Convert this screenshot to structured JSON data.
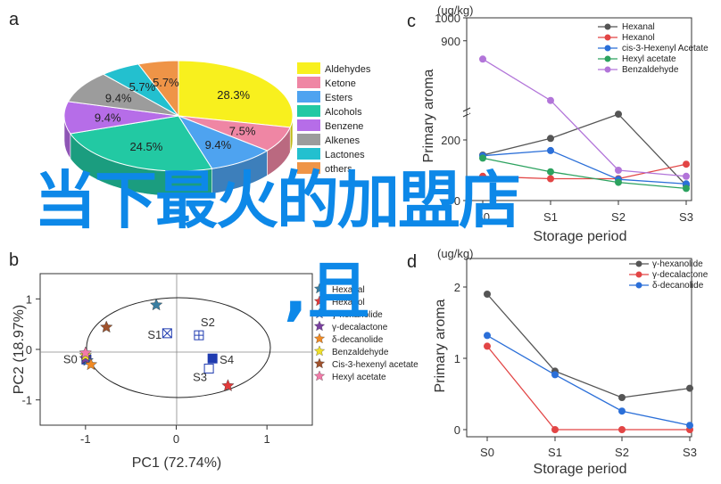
{
  "panels": {
    "a": "a",
    "b": "b",
    "c": "c",
    "d": "d"
  },
  "overlay_text": {
    "line1": "当下最火的加盟店",
    "line2": ",且"
  },
  "chart_data": [
    {
      "type": "pie",
      "panel": "a",
      "labels": [
        "Aldehydes",
        "Ketone",
        "Esters",
        "Alcohols",
        "Benzene",
        "Alkenes",
        "Lactones",
        "others"
      ],
      "values": [
        28.3,
        7.5,
        9.4,
        24.5,
        9.4,
        9.4,
        5.7,
        5.7
      ],
      "value_labels": [
        "28.3%",
        "7.5%",
        "9.4%",
        "24.5%",
        "9.4%",
        "9.4%",
        "5.7%",
        "5.7%"
      ],
      "colors": [
        "#f8f01e",
        "#ef86a4",
        "#4ea3f0",
        "#22c9a3",
        "#b66de8",
        "#9c9c9c",
        "#23c0cf",
        "#ef9447"
      ],
      "legend_position": "right"
    },
    {
      "type": "scatter",
      "panel": "b",
      "xlabel": "PC1 (72.74%)",
      "ylabel": "PC2 (18.97%)",
      "xlim": [
        -1.5,
        1.5
      ],
      "ylim": [
        -1.5,
        1.5
      ],
      "xticks": [
        -1,
        0,
        1
      ],
      "yticks": [
        -1,
        0,
        1
      ],
      "x_tick_labels": [
        "-1",
        "0",
        "1"
      ],
      "y_tick_labels": [
        "-1",
        "0",
        "1"
      ],
      "samples": [
        {
          "name": "S0",
          "x": -0.99,
          "y": -0.2
        },
        {
          "name": "S1",
          "x": -0.1,
          "y": 0.32
        },
        {
          "name": "S2",
          "x": 0.25,
          "y": 0.28
        },
        {
          "name": "S3",
          "x": 0.36,
          "y": -0.38
        },
        {
          "name": "S4",
          "x": 0.4,
          "y": -0.18
        }
      ],
      "variables": [
        {
          "name": "Hexanal",
          "x": -0.22,
          "y": 0.88,
          "color": "#3a7ea1"
        },
        {
          "name": "Hexanol",
          "x": 0.57,
          "y": -0.72,
          "color": "#e23a3a"
        },
        {
          "name": "γ-hexanolide",
          "x": -0.98,
          "y": -0.22,
          "color": "#2b6fd8"
        },
        {
          "name": "γ-decalactone",
          "x": -1.0,
          "y": -0.18,
          "color": "#7a3fa0"
        },
        {
          "name": "δ-decanolide",
          "x": -0.94,
          "y": -0.3,
          "color": "#f08a24"
        },
        {
          "name": "Benzaldehyde",
          "x": -1.0,
          "y": -0.12,
          "color": "#f0e02a"
        },
        {
          "name": "Cis-3-hexenyl acetate",
          "x": -0.77,
          "y": 0.44,
          "color": "#a0522d"
        },
        {
          "name": "Hexyl acetate",
          "x": -1.0,
          "y": -0.07,
          "color": "#f27aa8"
        }
      ],
      "legend_position": "right"
    },
    {
      "type": "line",
      "panel": "c",
      "units_label": "(ug/kg)",
      "xlabel": "Storage period",
      "ylabel": "Primary aroma",
      "categories": [
        "S0",
        "S1",
        "S2",
        "S3"
      ],
      "y_tick_labels": [
        "0",
        "200",
        "900",
        "1000"
      ],
      "axis_break": true,
      "series": [
        {
          "name": "Hexanal",
          "color": "#555555",
          "values": [
            150,
            205,
            285,
            50
          ]
        },
        {
          "name": "Hexanol",
          "color": "#e24545",
          "values": [
            80,
            72,
            72,
            120
          ]
        },
        {
          "name": "cis-3-Hexenyl Acetate",
          "color": "#2b6fd8",
          "values": [
            148,
            165,
            70,
            55
          ]
        },
        {
          "name": "Hexyl acetate",
          "color": "#2ca25f",
          "values": [
            140,
            95,
            60,
            40
          ]
        },
        {
          "name": "Benzaldehyde",
          "color": "#b275d9",
          "values": [
            820,
            640,
            100,
            80
          ]
        }
      ],
      "legend_position": "top-right"
    },
    {
      "type": "line",
      "panel": "d",
      "units_label": "(ug/kg)",
      "xlabel": "Storage period",
      "ylabel": "Primary aroma",
      "categories": [
        "S0",
        "S1",
        "S2",
        "S3"
      ],
      "ylim": [
        -0.1,
        2.4
      ],
      "yticks": [
        0,
        1,
        2
      ],
      "y_tick_labels": [
        "0",
        "1",
        "2"
      ],
      "series": [
        {
          "name": "γ-hexanolide",
          "color": "#555555",
          "values": [
            1.9,
            0.82,
            0.45,
            0.58
          ]
        },
        {
          "name": "γ-decalactone",
          "color": "#e24545",
          "values": [
            1.17,
            0.0,
            0.0,
            0.0
          ]
        },
        {
          "name": "δ-decanolide",
          "color": "#2b6fd8",
          "values": [
            1.32,
            0.77,
            0.26,
            0.06
          ]
        }
      ],
      "legend_position": "top-right"
    }
  ]
}
